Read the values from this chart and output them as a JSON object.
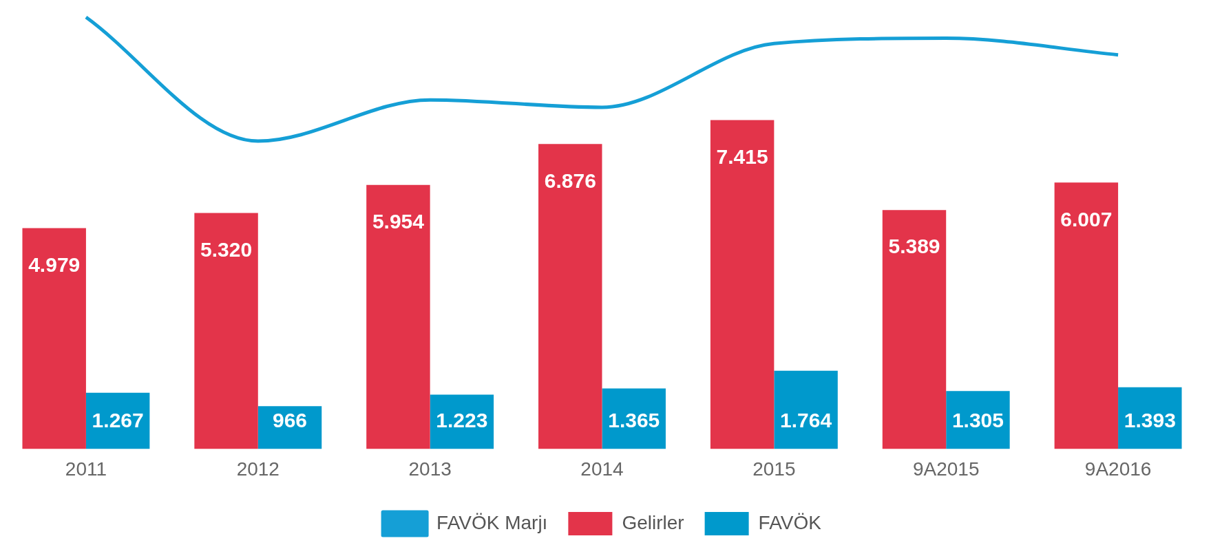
{
  "chart_data": {
    "type": "bar",
    "categories": [
      "2011",
      "2012",
      "2013",
      "2014",
      "2015",
      "9A2015",
      "9A2016"
    ],
    "series": [
      {
        "name": "Gelirler",
        "color": "#e3344a",
        "values": [
          4979,
          5320,
          5954,
          6876,
          7415,
          5389,
          6007
        ],
        "value_labels": [
          "4.979",
          "5.320",
          "5.954",
          "6.876",
          "7.415",
          "5.389",
          "6.007"
        ]
      },
      {
        "name": "FAVÖK",
        "color": "#0099cc",
        "values": [
          1267,
          966,
          1223,
          1365,
          1764,
          1305,
          1393
        ],
        "value_labels": [
          "1.267",
          "966",
          "1.223",
          "1.365",
          "1.764",
          "1.305",
          "1.393"
        ]
      },
      {
        "name": "FAVÖK Marjı",
        "type": "line",
        "color": "#159fd6",
        "values": [
          9735,
          6941,
          7872,
          7703,
          9142,
          9261,
          8888
        ]
      }
    ],
    "legend": "bottom",
    "grid": false,
    "marker": "none",
    "tick_labels": "x"
  }
}
